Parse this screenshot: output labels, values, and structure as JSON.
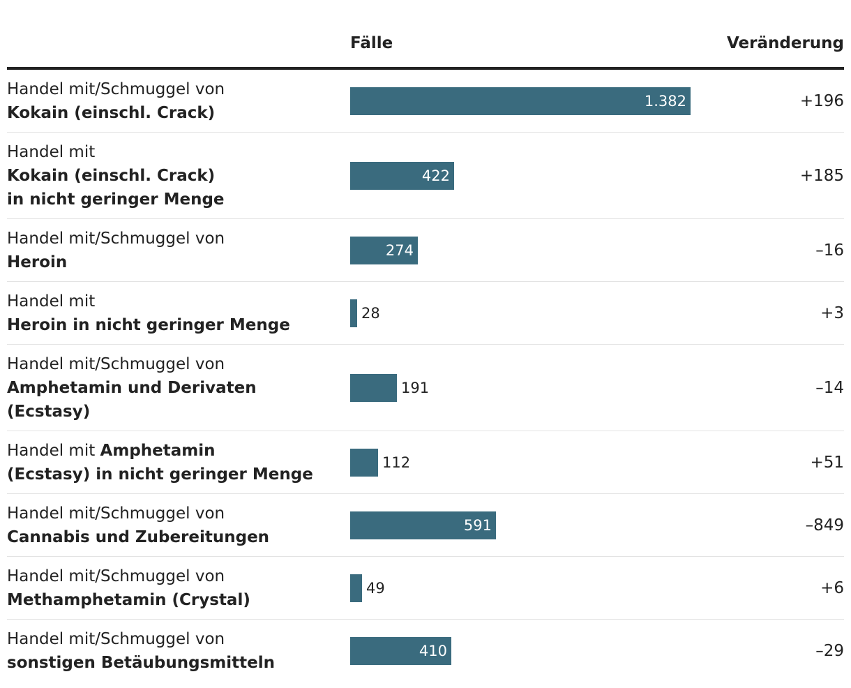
{
  "colors": {
    "bar": "#3a6b7e",
    "text": "#222222",
    "rule": "#222222",
    "divider": "#e3e3e3"
  },
  "chart_data": {
    "type": "bar",
    "orientation": "horizontal",
    "columns": {
      "cases": "Fälle",
      "change": "Veränderung"
    },
    "xlim": [
      0,
      1382
    ],
    "rows": [
      {
        "label_lines": [
          [
            {
              "t": "Handel mit/Schmuggel von",
              "b": false
            }
          ],
          [
            {
              "t": "Kokain (einschl. Crack)",
              "b": true
            }
          ]
        ],
        "value": 1382,
        "value_label": "1.382",
        "change": "+196"
      },
      {
        "label_lines": [
          [
            {
              "t": "Handel mit",
              "b": false
            }
          ],
          [
            {
              "t": "Kokain (einschl. Crack)",
              "b": true
            }
          ],
          [
            {
              "t": "in nicht geringer Menge",
              "b": true
            }
          ]
        ],
        "value": 422,
        "value_label": "422",
        "change": "+185"
      },
      {
        "label_lines": [
          [
            {
              "t": "Handel mit/Schmuggel von",
              "b": false
            }
          ],
          [
            {
              "t": "Heroin",
              "b": true
            }
          ]
        ],
        "value": 274,
        "value_label": "274",
        "change": "–16"
      },
      {
        "label_lines": [
          [
            {
              "t": "Handel mit",
              "b": false
            }
          ],
          [
            {
              "t": "Heroin in nicht geringer Menge",
              "b": true
            }
          ]
        ],
        "value": 28,
        "value_label": "28",
        "change": "+3"
      },
      {
        "label_lines": [
          [
            {
              "t": "Handel mit/Schmuggel von",
              "b": false
            }
          ],
          [
            {
              "t": "Amphetamin und Derivaten",
              "b": true
            }
          ],
          [
            {
              "t": "(Ecstasy)",
              "b": true
            }
          ]
        ],
        "value": 191,
        "value_label": "191",
        "change": "–14"
      },
      {
        "label_lines": [
          [
            {
              "t": "Handel mit ",
              "b": false
            },
            {
              "t": "Amphetamin",
              "b": true
            }
          ],
          [
            {
              "t": "(Ecstasy) in nicht geringer Menge",
              "b": true
            }
          ]
        ],
        "value": 112,
        "value_label": "112",
        "change": "+51"
      },
      {
        "label_lines": [
          [
            {
              "t": "Handel mit/Schmuggel von",
              "b": false
            }
          ],
          [
            {
              "t": "Cannabis und Zubereitungen",
              "b": true
            }
          ]
        ],
        "value": 591,
        "value_label": "591",
        "change": "–849"
      },
      {
        "label_lines": [
          [
            {
              "t": "Handel mit/Schmuggel von",
              "b": false
            }
          ],
          [
            {
              "t": "Methamphetamin (Crystal)",
              "b": true
            }
          ]
        ],
        "value": 49,
        "value_label": "49",
        "change": "+6"
      },
      {
        "label_lines": [
          [
            {
              "t": "Handel mit/Schmuggel von",
              "b": false
            }
          ],
          [
            {
              "t": "sonstigen Betäubungsmitteln",
              "b": true
            }
          ]
        ],
        "value": 410,
        "value_label": "410",
        "change": "–29"
      }
    ]
  }
}
